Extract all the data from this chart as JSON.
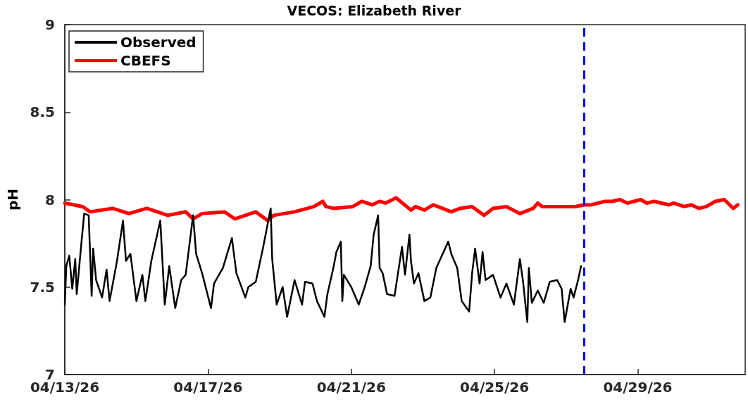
{
  "chart_data": {
    "type": "line",
    "title": "VECOS: Elizabeth River",
    "ylabel": "pH",
    "xlim": [
      "--04-13T00:00",
      "--05-02T00:00"
    ],
    "xticks": [
      {
        "value": "--04-13",
        "label": "04/13/26"
      },
      {
        "value": "--04-17",
        "label": "04/17/26"
      },
      {
        "value": "--04-21",
        "label": "04/21/26"
      },
      {
        "value": "--04-25",
        "label": "04/25/26"
      },
      {
        "value": "--04-29",
        "label": "04/29/26"
      }
    ],
    "ylim": [
      7,
      9
    ],
    "yticks": [
      7,
      7.5,
      8,
      8.5,
      9
    ],
    "grid": false,
    "legend": "top left",
    "line_style": "solid",
    "marker": "none",
    "ref_lines": [
      {
        "axis": "x",
        "value": "--04-27T12:00",
        "color": "#0000ff",
        "line_style": "dashed"
      }
    ],
    "series": [
      {
        "name": "Observed",
        "color": "#000000",
        "x": [
          "--04-13T00:00",
          "--04-13T01:00",
          "--04-13T03:00",
          "--04-13T05:00",
          "--04-13T07:00",
          "--04-13T08:00",
          "--04-13T11:00",
          "--04-13T13:00",
          "--04-13T16:00",
          "--04-13T18:00",
          "--04-13T19:00",
          "--04-13T21:00",
          "--04-14T01:00",
          "--04-14T04:00",
          "--04-14T06:00",
          "--04-14T11:00",
          "--04-14T15:00",
          "--04-14T17:00",
          "--04-14T20:00",
          "--04-15T00:00",
          "--04-15T04:00",
          "--04-15T06:00",
          "--04-15T10:00",
          "--04-15T16:00",
          "--04-15T19:00",
          "--04-15T22:00",
          "--04-16T02:00",
          "--04-16T06:00",
          "--04-16T09:00",
          "--04-16T14:00",
          "--04-16T16:00",
          "--04-16T20:00",
          "--04-17T02:00",
          "--04-17T04:00",
          "--04-17T10:00",
          "--04-17T16:00",
          "--04-17T19:00",
          "--04-18T01:00",
          "--04-18T03:00",
          "--04-18T08:00",
          "--04-18T13:00",
          "--04-18T18:00",
          "--04-18T19:00",
          "--04-18T22:00",
          "--04-19T02:00",
          "--04-19T05:00",
          "--04-19T10:00",
          "--04-19T15:00",
          "--04-19T17:00",
          "--04-19T22:00",
          "--04-20T01:00",
          "--04-20T06:00",
          "--04-20T08:00",
          "--04-20T12:00",
          "--04-20T14:00",
          "--04-20T17:00",
          "--04-20T18:00",
          "--04-20T19:00",
          "--04-21T00:00",
          "--04-21T05:00",
          "--04-21T09:00",
          "--04-21T13:00",
          "--04-21T15:00",
          "--04-21T18:00",
          "--04-21T19:00",
          "--04-21T21:00",
          "--04-22T00:00",
          "--04-22T05:00",
          "--04-22T10:00",
          "--04-22T12:00",
          "--04-22T15:00",
          "--04-22T16:00",
          "--04-22T18:00",
          "--04-22T21:00",
          "--04-23T01:00",
          "--04-23T05:00",
          "--04-23T09:00",
          "--04-23T17:00",
          "--04-23T19:00",
          "--04-23T23:00",
          "--04-24T02:00",
          "--04-24T07:00",
          "--04-24T09:00",
          "--04-24T11:00",
          "--04-24T14:00",
          "--04-24T16:00",
          "--04-24T18:00",
          "--04-24T23:00",
          "--04-25T04:00",
          "--04-25T08:00",
          "--04-25T13:00",
          "--04-25T17:00",
          "--04-25T19:00",
          "--04-25T22:00",
          "--04-25T23:00",
          "--04-26T01:00",
          "--04-26T05:00",
          "--04-26T09:00",
          "--04-26T13:00",
          "--04-26T18:00",
          "--04-26T21:00",
          "--04-26T23:00",
          "--04-27T03:00",
          "--04-27T05:00",
          "--04-27T08:00",
          "--04-27T10:00"
        ],
        "values": [
          7.4,
          7.62,
          7.68,
          7.49,
          7.66,
          7.46,
          7.74,
          7.92,
          7.91,
          7.45,
          7.72,
          7.54,
          7.44,
          7.6,
          7.42,
          7.65,
          7.88,
          7.65,
          7.69,
          7.42,
          7.57,
          7.42,
          7.65,
          7.88,
          7.4,
          7.62,
          7.38,
          7.54,
          7.57,
          7.91,
          7.69,
          7.58,
          7.38,
          7.52,
          7.61,
          7.78,
          7.58,
          7.44,
          7.5,
          7.53,
          7.73,
          7.95,
          7.66,
          7.4,
          7.5,
          7.33,
          7.54,
          7.4,
          7.53,
          7.52,
          7.42,
          7.33,
          7.46,
          7.61,
          7.7,
          7.76,
          7.42,
          7.57,
          7.5,
          7.4,
          7.5,
          7.62,
          7.8,
          7.91,
          7.61,
          7.58,
          7.46,
          7.45,
          7.73,
          7.57,
          7.8,
          7.65,
          7.52,
          7.58,
          7.42,
          7.44,
          7.61,
          7.76,
          7.69,
          7.61,
          7.42,
          7.36,
          7.58,
          7.72,
          7.52,
          7.7,
          7.54,
          7.57,
          7.44,
          7.52,
          7.4,
          7.66,
          7.54,
          7.3,
          7.61,
          7.41,
          7.48,
          7.41,
          7.53,
          7.54,
          7.49,
          7.3,
          7.49,
          7.44,
          7.54,
          7.62
        ]
      },
      {
        "name": "CBEFS",
        "color": "#ff0000",
        "x": [
          "--04-13T00:00",
          "--04-13T12:00",
          "--04-13T17:00",
          "--04-14T08:00",
          "--04-14T19:00",
          "--04-15T07:00",
          "--04-15T21:00",
          "--04-16T09:00",
          "--04-16T14:00",
          "--04-16T20:00",
          "--04-17T11:00",
          "--04-17T18:00",
          "--04-18T08:00",
          "--04-18T16:00",
          "--04-18T20:00",
          "--04-19T10:00",
          "--04-19T23:00",
          "--04-20T05:00",
          "--04-20T07:00",
          "--04-20T12:00",
          "--04-21T01:00",
          "--04-21T07:00",
          "--04-21T14:00",
          "--04-21T19:00",
          "--04-21T23:00",
          "--04-22T06:00",
          "--04-22T16:00",
          "--04-22T19:00",
          "--04-23T01:00",
          "--04-23T07:00",
          "--04-23T13:00",
          "--04-23T19:00",
          "--04-24T01:00",
          "--04-24T09:00",
          "--04-24T17:00",
          "--04-24T23:00",
          "--04-25T08:00",
          "--04-25T17:00",
          "--04-26T02:00",
          "--04-26T05:00",
          "--04-26T08:00",
          "--04-27T06:00",
          "--04-27T12:00",
          "--04-27T17:00",
          "--04-28T02:00",
          "--04-28T07:00",
          "--04-28T12:00",
          "--04-28T17:00",
          "--04-29T02:00",
          "--04-29T06:00",
          "--04-29T11:00",
          "--04-29T21:00",
          "--04-30T00:00",
          "--04-30T07:00",
          "--04-30T12:00",
          "--04-30T17:00",
          "--04-30T22:00",
          "--05-01T04:00",
          "--05-01T10:00",
          "--05-01T16:00",
          "--05-01T19:00"
        ],
        "values": [
          7.98,
          7.96,
          7.93,
          7.95,
          7.92,
          7.95,
          7.91,
          7.93,
          7.89,
          7.92,
          7.93,
          7.89,
          7.93,
          7.88,
          7.91,
          7.93,
          7.96,
          7.99,
          7.96,
          7.95,
          7.96,
          7.99,
          7.97,
          7.99,
          7.98,
          8.01,
          7.94,
          7.96,
          7.94,
          7.97,
          7.95,
          7.93,
          7.95,
          7.96,
          7.91,
          7.95,
          7.96,
          7.92,
          7.95,
          7.98,
          7.96,
          7.96,
          7.97,
          7.97,
          7.99,
          7.99,
          8.0,
          7.98,
          8.0,
          7.98,
          7.99,
          7.97,
          7.98,
          7.96,
          7.97,
          7.95,
          7.96,
          7.99,
          8.0,
          7.95,
          7.97
        ]
      }
    ]
  }
}
